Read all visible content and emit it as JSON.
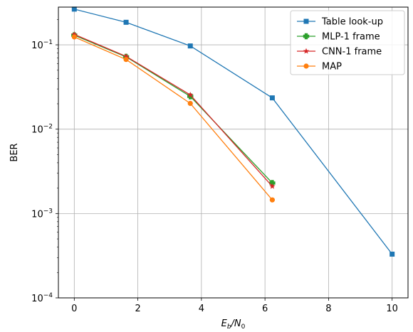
{
  "chart_data": {
    "type": "line",
    "title": "",
    "xlabel_main": "E",
    "xlabel_sub1": "b",
    "xlabel_sep": "/N",
    "xlabel_sub2": "0",
    "ylabel": "BER",
    "xlim": [
      -0.5,
      10.5
    ],
    "ylim": [
      0.0001,
      0.28
    ],
    "yscale": "log",
    "grid": true,
    "legend_position": "top-right",
    "x_ticks": [
      {
        "value": 0,
        "label": "0"
      },
      {
        "value": 2,
        "label": "2"
      },
      {
        "value": 4,
        "label": "4"
      },
      {
        "value": 6,
        "label": "6"
      },
      {
        "value": 8,
        "label": "8"
      },
      {
        "value": 10,
        "label": "10"
      }
    ],
    "y_ticks": [
      {
        "value": 0.0001,
        "mantissa": "10",
        "exponent": "−4"
      },
      {
        "value": 0.001,
        "mantissa": "10",
        "exponent": "−3"
      },
      {
        "value": 0.01,
        "mantissa": "10",
        "exponent": "−2"
      },
      {
        "value": 0.1,
        "mantissa": "10",
        "exponent": "−1"
      }
    ],
    "series": [
      {
        "name": "Table look-up",
        "color": "#1f77b4",
        "marker": "square",
        "x": [
          0,
          1.63,
          3.65,
          6.23,
          10
        ],
        "y": [
          0.265,
          0.185,
          0.097,
          0.0235,
          0.00033
        ]
      },
      {
        "name": "MLP-1 frame",
        "color": "#2ca02c",
        "marker": "plus",
        "x": [
          0,
          1.63,
          3.65,
          6.23
        ],
        "y": [
          0.13,
          0.072,
          0.0245,
          0.0023
        ]
      },
      {
        "name": "CNN-1 frame",
        "color": "#d62728",
        "marker": "star",
        "x": [
          0,
          1.63,
          3.65,
          6.23
        ],
        "y": [
          0.133,
          0.073,
          0.0255,
          0.0021
        ]
      },
      {
        "name": "MAP",
        "color": "#ff7f0e",
        "marker": "circle",
        "x": [
          0,
          1.63,
          3.65,
          6.23
        ],
        "y": [
          0.124,
          0.067,
          0.0202,
          0.00145
        ]
      }
    ]
  }
}
